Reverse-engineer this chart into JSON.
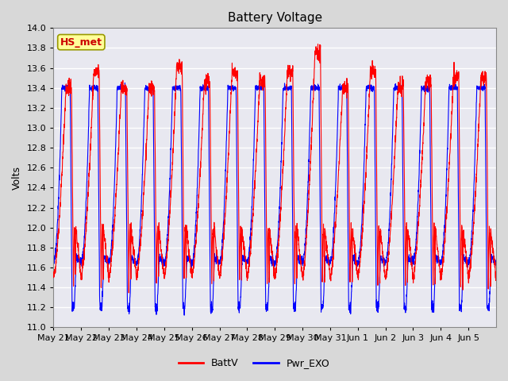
{
  "title": "Battery Voltage",
  "ylabel": "Volts",
  "ylim": [
    11.0,
    14.0
  ],
  "yticks": [
    11.0,
    11.2,
    11.4,
    11.6,
    11.8,
    12.0,
    12.2,
    12.4,
    12.6,
    12.8,
    13.0,
    13.2,
    13.4,
    13.6,
    13.8,
    14.0
  ],
  "xtick_labels": [
    "May 21",
    "May 22",
    "May 23",
    "May 24",
    "May 25",
    "May 26",
    "May 27",
    "May 28",
    "May 29",
    "May 30",
    "May 31",
    "Jun 1",
    "Jun 2",
    "Jun 3",
    "Jun 4",
    "Jun 5"
  ],
  "legend_entries": [
    "BattV",
    "Pwr_EXO"
  ],
  "line_colors": [
    "red",
    "blue"
  ],
  "station_label": "HS_met",
  "station_label_color": "#cc0000",
  "station_box_facecolor": "#ffff99",
  "station_box_edgecolor": "#999900",
  "bg_color": "#d8d8d8",
  "plot_bg_color": "#e8e8f0",
  "grid_color": "white",
  "title_fontsize": 11,
  "axis_fontsize": 9,
  "tick_fontsize": 8,
  "n_days": 16,
  "pts_per_day": 200
}
